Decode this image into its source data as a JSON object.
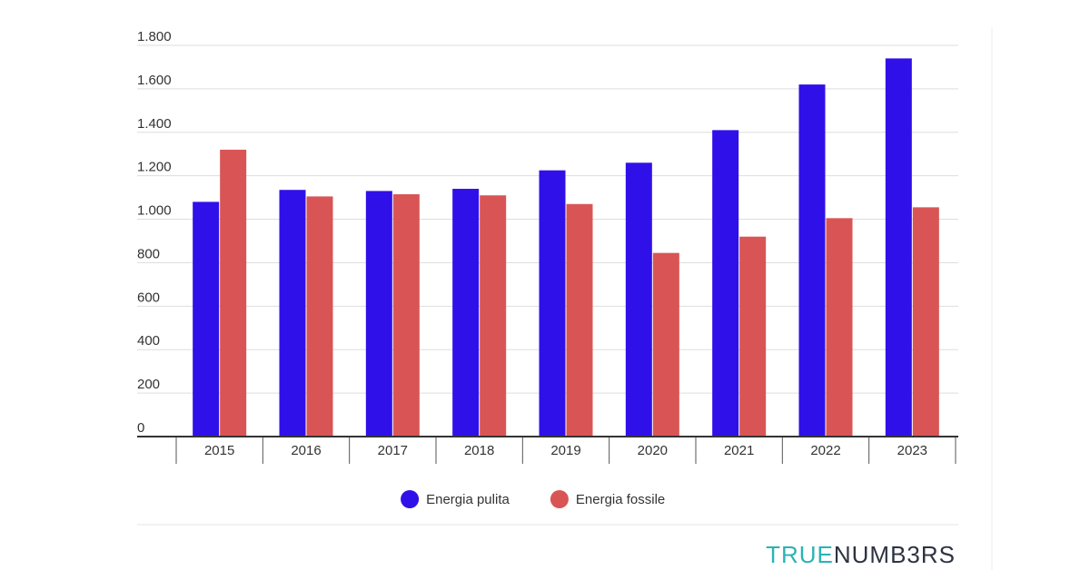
{
  "chart_data": {
    "type": "bar",
    "categories": [
      "2015",
      "2016",
      "2017",
      "2018",
      "2019",
      "2020",
      "2021",
      "2022",
      "2023"
    ],
    "series": [
      {
        "name": "Energia pulita",
        "color": "#3010e8",
        "values": [
          1080,
          1135,
          1130,
          1140,
          1225,
          1260,
          1410,
          1620,
          1740
        ]
      },
      {
        "name": "Energia fossile",
        "color": "#d95555",
        "values": [
          1320,
          1105,
          1115,
          1110,
          1070,
          845,
          920,
          1005,
          1055
        ]
      }
    ],
    "ylim": [
      0,
      1800
    ],
    "yticks": [
      0,
      200,
      400,
      600,
      800,
      {
        "value": 1000,
        "label": "1.000"
      },
      {
        "value": 1200,
        "label": "1.200"
      },
      {
        "value": 1400,
        "label": "1.400"
      },
      {
        "value": 1600,
        "label": "1.600"
      },
      {
        "value": 1800,
        "label": "1.800"
      }
    ],
    "grid": true,
    "legend": "bottom"
  },
  "brand": {
    "first": "TRUE",
    "second": "NUMB3RS"
  }
}
